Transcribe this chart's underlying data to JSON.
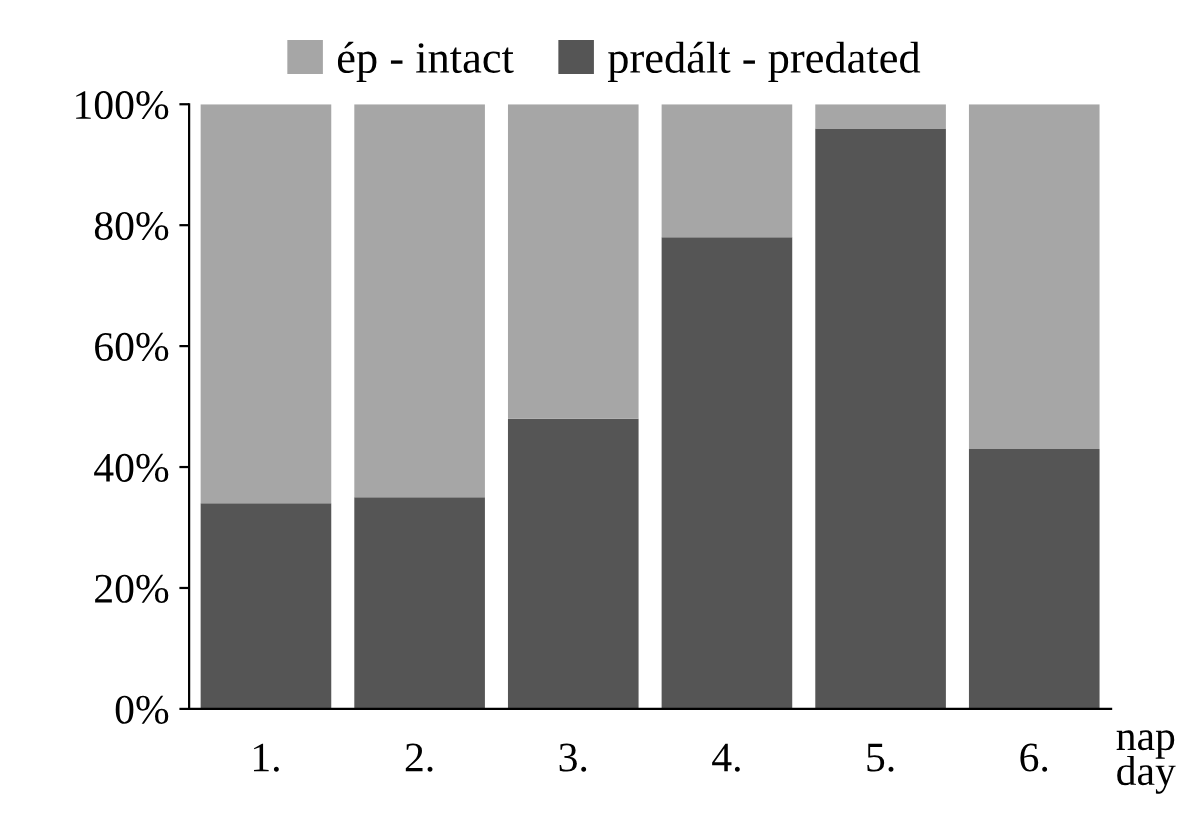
{
  "chart_data": {
    "type": "bar",
    "stacked": true,
    "categories": [
      "1.",
      "2.",
      "3.",
      "4.",
      "5.",
      "6."
    ],
    "xlabel": "nap\nday",
    "series": [
      {
        "name": "predált - predated",
        "color": "#555555",
        "values": [
          34,
          35,
          48,
          78,
          96,
          43
        ]
      },
      {
        "name": "ép - intact",
        "color": "#a6a6a6",
        "values": [
          66,
          65,
          52,
          22,
          4,
          57
        ]
      }
    ],
    "ylim": [
      0,
      100
    ],
    "yticks": [
      {
        "value": 0,
        "label": "0%"
      },
      {
        "value": 20,
        "label": "20%"
      },
      {
        "value": 40,
        "label": "40%"
      },
      {
        "value": 60,
        "label": "60%"
      },
      {
        "value": 80,
        "label": "80%"
      },
      {
        "value": 100,
        "label": "100%"
      }
    ],
    "grid": false,
    "legend": "top"
  }
}
